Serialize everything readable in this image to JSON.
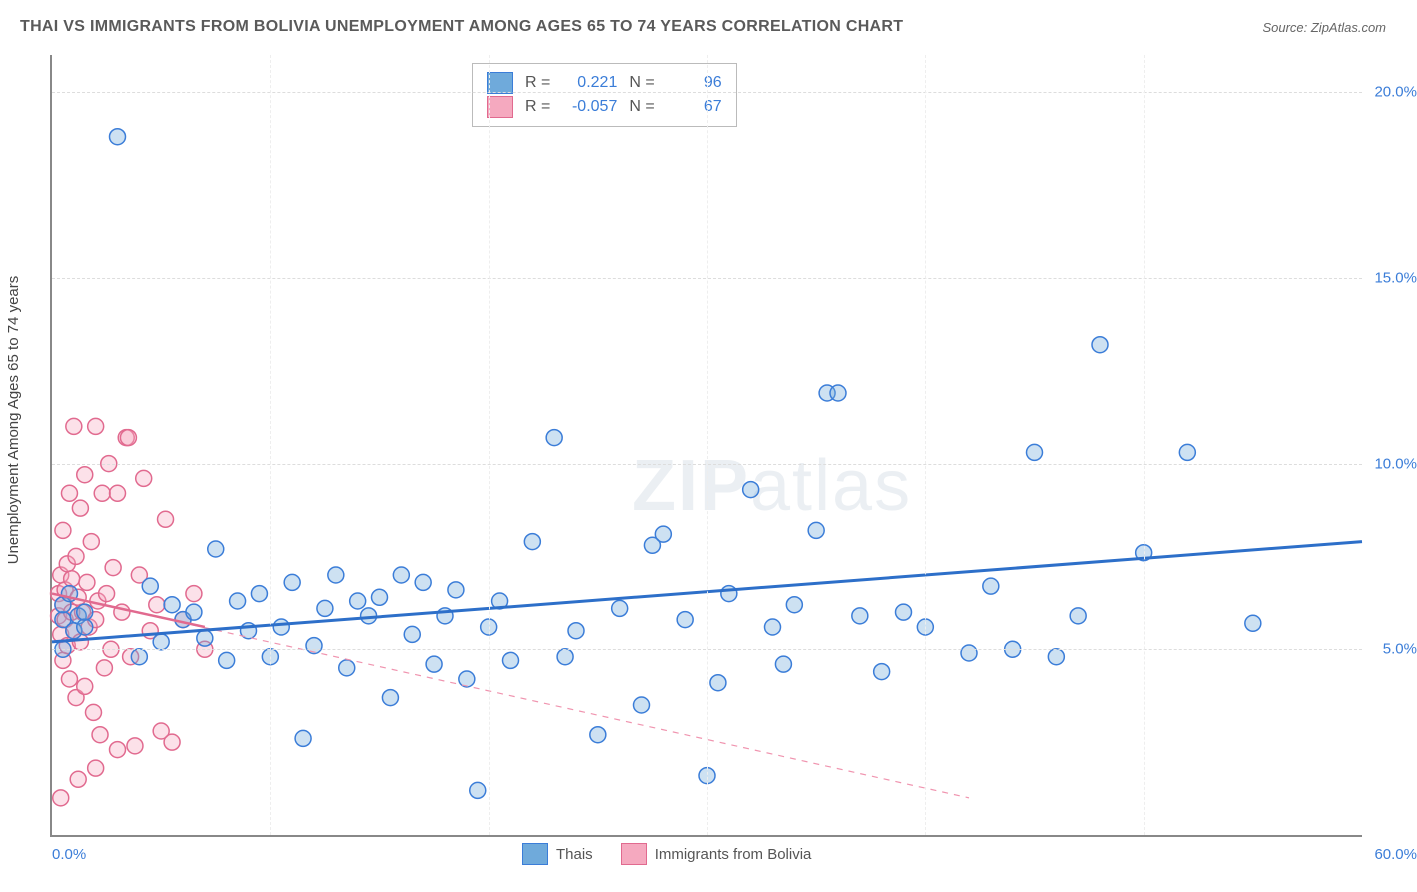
{
  "title": "THAI VS IMMIGRANTS FROM BOLIVIA UNEMPLOYMENT AMONG AGES 65 TO 74 YEARS CORRELATION CHART",
  "source": "Source: ZipAtlas.com",
  "y_axis_label": "Unemployment Among Ages 65 to 74 years",
  "watermark_bold": "ZIP",
  "watermark_light": "atlas",
  "chart": {
    "type": "scatter",
    "background_color": "#ffffff",
    "grid_color": "#dddddd",
    "axis_color": "#888888",
    "tick_label_color": "#3b7dd8",
    "tick_fontsize": 15,
    "xlim": [
      0,
      60
    ],
    "ylim": [
      0,
      21
    ],
    "y_ticks": [
      5,
      10,
      15,
      20
    ],
    "y_tick_labels": [
      "5.0%",
      "10.0%",
      "15.0%",
      "20.0%"
    ],
    "x_ticks": [
      0,
      60
    ],
    "x_tick_labels": [
      "0.0%",
      "60.0%"
    ],
    "x_minor_ticks": [
      10,
      20,
      30,
      40,
      50
    ],
    "marker_radius": 8,
    "marker_stroke_width": 1.5,
    "marker_fill_opacity": 0.35,
    "series": [
      {
        "name": "Thais",
        "color": "#6faadb",
        "stroke": "#3b7dd8",
        "R": "0.221",
        "N": "96",
        "trend": {
          "x1": 0,
          "y1": 5.2,
          "x2": 60,
          "y2": 7.9,
          "width": 3,
          "solid": true,
          "color": "#2d6fc9"
        },
        "points": [
          [
            0.5,
            5.8
          ],
          [
            0.5,
            6.2
          ],
          [
            0.5,
            5.0
          ],
          [
            0.8,
            6.5
          ],
          [
            1.0,
            5.5
          ],
          [
            1.2,
            5.9
          ],
          [
            1.5,
            5.6
          ],
          [
            1.5,
            6.0
          ],
          [
            3.0,
            18.8
          ],
          [
            4.0,
            4.8
          ],
          [
            4.5,
            6.7
          ],
          [
            5.0,
            5.2
          ],
          [
            5.5,
            6.2
          ],
          [
            6.0,
            5.8
          ],
          [
            6.5,
            6.0
          ],
          [
            7.0,
            5.3
          ],
          [
            7.5,
            7.7
          ],
          [
            8.0,
            4.7
          ],
          [
            8.5,
            6.3
          ],
          [
            9.0,
            5.5
          ],
          [
            9.5,
            6.5
          ],
          [
            10.0,
            4.8
          ],
          [
            10.5,
            5.6
          ],
          [
            11.0,
            6.8
          ],
          [
            11.5,
            2.6
          ],
          [
            12.0,
            5.1
          ],
          [
            12.5,
            6.1
          ],
          [
            13.0,
            7.0
          ],
          [
            13.5,
            4.5
          ],
          [
            14.0,
            6.3
          ],
          [
            14.5,
            5.9
          ],
          [
            15.0,
            6.4
          ],
          [
            15.5,
            3.7
          ],
          [
            16.0,
            7.0
          ],
          [
            16.5,
            5.4
          ],
          [
            17.0,
            6.8
          ],
          [
            17.5,
            4.6
          ],
          [
            18.0,
            5.9
          ],
          [
            18.5,
            6.6
          ],
          [
            19.0,
            4.2
          ],
          [
            19.5,
            1.2
          ],
          [
            20.0,
            5.6
          ],
          [
            20.5,
            6.3
          ],
          [
            21.0,
            4.7
          ],
          [
            22.0,
            7.9
          ],
          [
            23.0,
            10.7
          ],
          [
            23.5,
            4.8
          ],
          [
            24.0,
            5.5
          ],
          [
            25.0,
            2.7
          ],
          [
            26.0,
            6.1
          ],
          [
            27.0,
            3.5
          ],
          [
            27.5,
            7.8
          ],
          [
            28.0,
            8.1
          ],
          [
            29.0,
            5.8
          ],
          [
            30.0,
            1.6
          ],
          [
            30.5,
            4.1
          ],
          [
            31.0,
            6.5
          ],
          [
            32.0,
            9.3
          ],
          [
            33.0,
            5.6
          ],
          [
            33.5,
            4.6
          ],
          [
            34.0,
            6.2
          ],
          [
            35.0,
            8.2
          ],
          [
            35.5,
            11.9
          ],
          [
            36.0,
            11.9
          ],
          [
            37.0,
            5.9
          ],
          [
            38.0,
            4.4
          ],
          [
            39.0,
            6.0
          ],
          [
            40.0,
            5.6
          ],
          [
            42.0,
            4.9
          ],
          [
            43.0,
            6.7
          ],
          [
            44.0,
            5.0
          ],
          [
            45.0,
            10.3
          ],
          [
            46.0,
            4.8
          ],
          [
            47.0,
            5.9
          ],
          [
            48.0,
            13.2
          ],
          [
            50.0,
            7.6
          ],
          [
            52.0,
            10.3
          ],
          [
            55.0,
            5.7
          ]
        ]
      },
      {
        "name": "Immigrants from Bolivia",
        "color": "#f5a9bf",
        "stroke": "#e16a8f",
        "R": "-0.057",
        "N": "67",
        "trend": {
          "x1": 0,
          "y1": 6.5,
          "x2": 42,
          "y2": 1.0,
          "width": 1.2,
          "solid": false,
          "color": "#f094af"
        },
        "trend_solid_part": {
          "x1": 0,
          "y1": 6.5,
          "x2": 7,
          "y2": 5.6,
          "width": 2.5,
          "color": "#e16a8f"
        },
        "points": [
          [
            0.3,
            6.5
          ],
          [
            0.3,
            5.9
          ],
          [
            0.4,
            7.0
          ],
          [
            0.4,
            5.4
          ],
          [
            0.5,
            6.2
          ],
          [
            0.5,
            8.2
          ],
          [
            0.5,
            4.7
          ],
          [
            0.6,
            5.8
          ],
          [
            0.6,
            6.6
          ],
          [
            0.7,
            7.3
          ],
          [
            0.7,
            5.1
          ],
          [
            0.8,
            9.2
          ],
          [
            0.8,
            4.2
          ],
          [
            0.9,
            6.0
          ],
          [
            0.9,
            6.9
          ],
          [
            1.0,
            11.0
          ],
          [
            1.0,
            5.5
          ],
          [
            1.1,
            7.5
          ],
          [
            1.1,
            3.7
          ],
          [
            1.2,
            6.4
          ],
          [
            1.3,
            8.8
          ],
          [
            1.3,
            5.2
          ],
          [
            1.4,
            6.0
          ],
          [
            1.5,
            9.7
          ],
          [
            1.5,
            4.0
          ],
          [
            1.6,
            6.8
          ],
          [
            1.7,
            5.6
          ],
          [
            1.8,
            7.9
          ],
          [
            1.9,
            3.3
          ],
          [
            2.0,
            11.0
          ],
          [
            2.0,
            5.8
          ],
          [
            2.1,
            6.3
          ],
          [
            2.2,
            2.7
          ],
          [
            2.3,
            9.2
          ],
          [
            2.4,
            4.5
          ],
          [
            2.5,
            6.5
          ],
          [
            2.6,
            10.0
          ],
          [
            2.7,
            5.0
          ],
          [
            2.8,
            7.2
          ],
          [
            3.0,
            9.2
          ],
          [
            3.0,
            2.3
          ],
          [
            3.2,
            6.0
          ],
          [
            3.4,
            10.7
          ],
          [
            3.5,
            10.7
          ],
          [
            3.6,
            4.8
          ],
          [
            3.8,
            2.4
          ],
          [
            4.0,
            7.0
          ],
          [
            4.2,
            9.6
          ],
          [
            4.5,
            5.5
          ],
          [
            4.8,
            6.2
          ],
          [
            5.0,
            2.8
          ],
          [
            5.2,
            8.5
          ],
          [
            5.5,
            2.5
          ],
          [
            6.0,
            5.8
          ],
          [
            6.5,
            6.5
          ],
          [
            7.0,
            5.0
          ],
          [
            0.4,
            1.0
          ],
          [
            1.2,
            1.5
          ],
          [
            2.0,
            1.8
          ]
        ]
      }
    ]
  },
  "stats_labels": {
    "R": "R =",
    "N": "N ="
  },
  "legend": {
    "thais": "Thais",
    "bolivia": "Immigrants from Bolivia"
  }
}
